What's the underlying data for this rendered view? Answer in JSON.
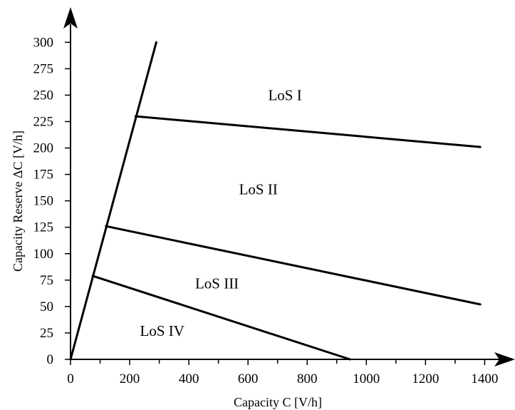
{
  "chart_data": {
    "type": "line",
    "xlabel": "Capacity C [V/h]",
    "ylabel": "Capacity Reserve  ΔC [V/h]",
    "xlim": [
      0,
      1500
    ],
    "ylim": [
      0,
      320
    ],
    "x_ticks": [
      "0",
      "200",
      "400",
      "600",
      "800",
      "1000",
      "1200",
      "1400"
    ],
    "x_tick_values": [
      0,
      200,
      400,
      600,
      800,
      1000,
      1200,
      1400
    ],
    "y_ticks": [
      "0",
      "25",
      "50",
      "75",
      "100",
      "125",
      "150",
      "175",
      "200",
      "225",
      "250",
      "275",
      "300"
    ],
    "y_tick_values": [
      0,
      25,
      50,
      75,
      100,
      125,
      150,
      175,
      200,
      225,
      250,
      275,
      300
    ],
    "series": [
      {
        "points": [
          [
            0,
            0
          ],
          [
            290,
            300
          ]
        ]
      },
      {
        "points": [
          [
            220,
            230
          ],
          [
            1385,
            201
          ]
        ]
      },
      {
        "points": [
          [
            120,
            126
          ],
          [
            1385,
            52
          ]
        ]
      },
      {
        "points": [
          [
            75,
            79
          ],
          [
            945,
            0
          ]
        ]
      }
    ],
    "annotations": [
      {
        "text": "LoS I",
        "x": 725,
        "y": 250
      },
      {
        "text": "LoS II",
        "x": 635,
        "y": 161
      },
      {
        "text": "LoS III",
        "x": 495,
        "y": 72
      },
      {
        "text": "LoS IV",
        "x": 310,
        "y": 27
      }
    ],
    "grid": false,
    "legend": "none"
  }
}
